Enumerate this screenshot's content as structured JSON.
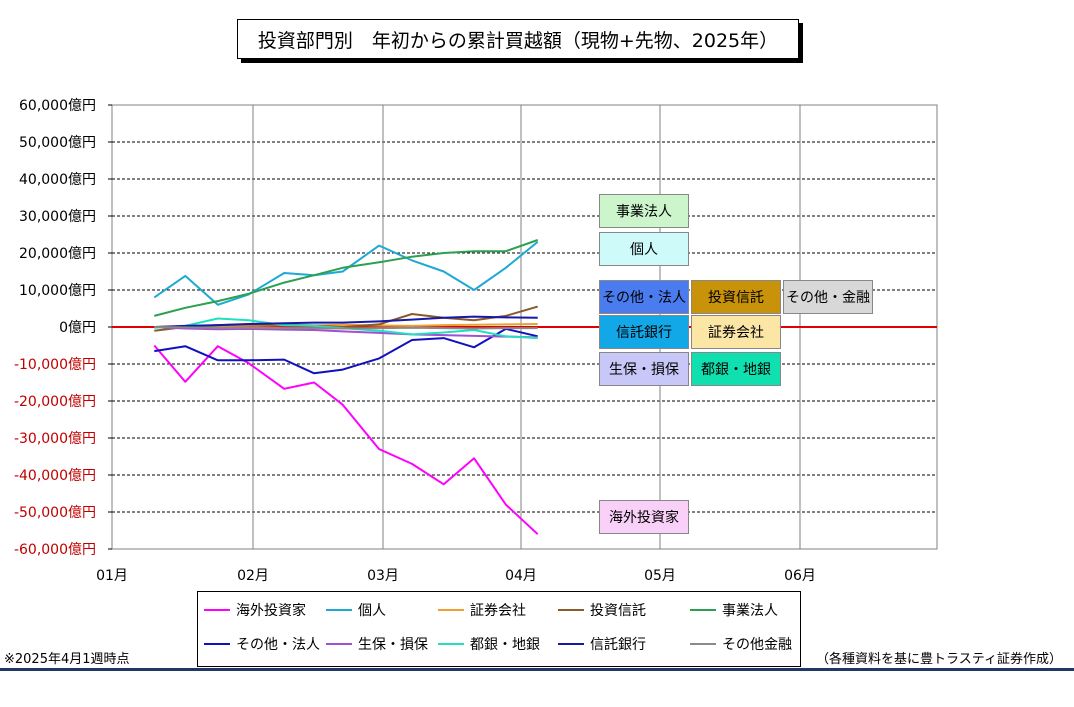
{
  "title": "投資部門別　年初からの累計買越額（現物+先物、2025年）",
  "note_left": "※2025年4月1週時点",
  "note_right": "（各種資料を基に豊トラスティ証券作成）",
  "colors": {
    "zero_line": "#e00000",
    "neg_tick": "#c00000",
    "bottom_bar": "#1f3864"
  },
  "chart_data": {
    "type": "line",
    "ylim": [
      -60000,
      60000
    ],
    "yticks": [
      60000,
      50000,
      40000,
      30000,
      20000,
      10000,
      0,
      -10000,
      -20000,
      -30000,
      -40000,
      -50000,
      -60000
    ],
    "ytick_labels": [
      "60,000億円",
      "50,000億円",
      "40,000億円",
      "30,000億円",
      "20,000億円",
      "10,000億円",
      "0億円",
      "-10,000億円",
      "-20,000億円",
      "-30,000億円",
      "-40,000億円",
      "-50,000億円",
      "-60,000億円"
    ],
    "xticks": [
      "01月",
      "02月",
      "03月",
      "04月",
      "05月",
      "06月"
    ],
    "x_weeks": [
      1.3,
      1.52,
      1.75,
      1.97,
      2.24,
      2.47,
      2.69,
      2.97,
      3.21,
      3.44,
      3.66,
      3.89,
      4.12
    ],
    "series": [
      {
        "name": "海外投資家",
        "color": "#ff00ff",
        "values": [
          -5000,
          -14800,
          -5200,
          -9800,
          -16700,
          -15000,
          -21000,
          -33000,
          -37000,
          -42500,
          -35500,
          -48000,
          -56000
        ]
      },
      {
        "name": "個人",
        "color": "#1fa8d4",
        "values": [
          8000,
          13800,
          6000,
          8800,
          14600,
          14000,
          15000,
          22000,
          18000,
          15000,
          10000,
          16000,
          23000
        ]
      },
      {
        "name": "証券会社",
        "color": "#f0a030",
        "values": [
          0,
          200,
          300,
          400,
          500,
          400,
          600,
          400,
          300,
          500,
          600,
          700,
          800
        ]
      },
      {
        "name": "投資信託",
        "color": "#8b5a2b",
        "values": [
          -1000,
          0,
          500,
          700,
          600,
          400,
          0,
          700,
          3500,
          2500,
          1800,
          3000,
          5500
        ]
      },
      {
        "name": "事業法人",
        "color": "#2aa050",
        "values": [
          3000,
          5200,
          7000,
          9000,
          12000,
          14000,
          16000,
          17500,
          19000,
          20000,
          20500,
          20500,
          23500
        ]
      },
      {
        "name": "その他・法人",
        "color": "#1010c0",
        "values": [
          -6500,
          -5200,
          -9000,
          -9000,
          -8800,
          -12500,
          -11500,
          -8500,
          -3500,
          -3000,
          -5500,
          -500,
          -2500
        ]
      },
      {
        "name": "生保・損保",
        "color": "#a050d0",
        "values": [
          0,
          -400,
          -600,
          -500,
          -700,
          -800,
          -1200,
          -1600,
          -2000,
          -2200,
          -2400,
          -2600,
          -2800
        ]
      },
      {
        "name": "都銀・地銀",
        "color": "#20e0c0",
        "values": [
          -200,
          300,
          2300,
          1800,
          500,
          300,
          -300,
          -1000,
          -2000,
          -1500,
          -800,
          -2500,
          -3000
        ]
      },
      {
        "name": "信託銀行",
        "color": "#1818a8",
        "values": [
          0,
          300,
          500,
          800,
          1000,
          1200,
          1200,
          1500,
          2000,
          2500,
          2800,
          2600,
          2500
        ]
      },
      {
        "name": "その他金融",
        "color": "#8a8a8a",
        "values": [
          0,
          -100,
          -200,
          -200,
          -300,
          -300,
          -400,
          -300,
          -200,
          -300,
          -400,
          -300,
          -300
        ]
      }
    ],
    "grid": true,
    "legend_position": "bottom"
  },
  "legend": [
    {
      "label": "海外投資家",
      "color": "#ff00ff"
    },
    {
      "label": "個人",
      "color": "#1fa8d4"
    },
    {
      "label": "証券会社",
      "color": "#f0a030"
    },
    {
      "label": "投資信託",
      "color": "#8b5a2b"
    },
    {
      "label": "事業法人",
      "color": "#2aa050"
    },
    {
      "label": "その他・法人",
      "color": "#1010c0"
    },
    {
      "label": "生保・損保",
      "color": "#a050d0"
    },
    {
      "label": "都銀・地銀",
      "color": "#20e0c0"
    },
    {
      "label": "信託銀行",
      "color": "#1818a8"
    },
    {
      "label": "その他金融",
      "color": "#8a8a8a"
    }
  ],
  "series_labels": [
    {
      "text": "事業法人",
      "bg": "#ccf5cc",
      "fg": "#000000"
    },
    {
      "text": "個人",
      "bg": "#cffafa",
      "fg": "#000000"
    },
    {
      "text": "その他・法人",
      "bg": "#4a7cf0",
      "fg": "#000000"
    },
    {
      "text": "投資信託",
      "bg": "#c8920a",
      "fg": "#000000"
    },
    {
      "text": "その他・金融",
      "bg": "#d8d8d8",
      "fg": "#000000"
    },
    {
      "text": "信託銀行",
      "bg": "#12a8e8",
      "fg": "#000000"
    },
    {
      "text": "証券会社",
      "bg": "#fbe6a6",
      "fg": "#000000"
    },
    {
      "text": "生保・損保",
      "bg": "#c8c8f8",
      "fg": "#000000"
    },
    {
      "text": "都銀・地銀",
      "bg": "#10e0b0",
      "fg": "#000000"
    },
    {
      "text": "海外投資家",
      "bg": "#f8d0f8",
      "fg": "#000000"
    }
  ]
}
